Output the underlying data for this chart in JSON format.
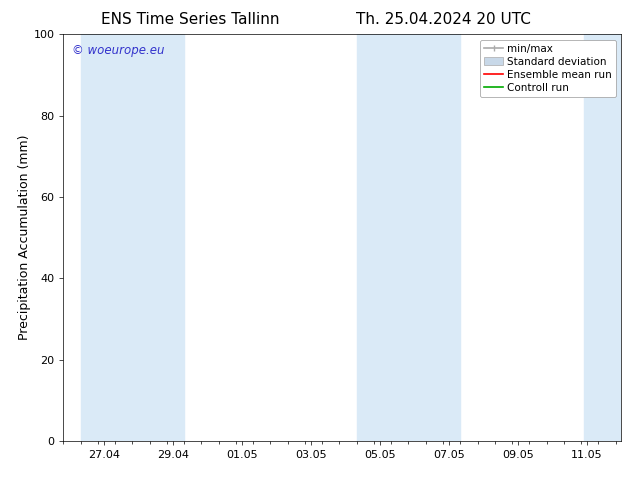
{
  "title_left": "ENS Time Series Tallinn",
  "title_right": "Th. 25.04.2024 20 UTC",
  "ylabel": "Precipitation Accumulation (mm)",
  "ylim": [
    0,
    100
  ],
  "yticks": [
    0,
    20,
    40,
    60,
    80,
    100
  ],
  "xtick_labels": [
    "27.04",
    "29.04",
    "01.05",
    "03.05",
    "05.05",
    "07.05",
    "09.05",
    "11.05"
  ],
  "xtick_positions": [
    1.167,
    3.167,
    5.167,
    7.167,
    9.167,
    11.167,
    13.167,
    15.167
  ],
  "xlim": [
    0,
    16.167
  ],
  "shaded_bands": [
    {
      "x_start": 0.5,
      "x_end": 3.5
    },
    {
      "x_start": 8.5,
      "x_end": 11.5
    },
    {
      "x_start": 15.1,
      "x_end": 16.2
    }
  ],
  "band_color": "#daeaf7",
  "watermark_text": "© woeurope.eu",
  "watermark_color": "#3333cc",
  "legend_labels": [
    "min/max",
    "Standard deviation",
    "Ensemble mean run",
    "Controll run"
  ],
  "legend_colors": [
    "#aaaaaa",
    "#c8d8e8",
    "#ff0000",
    "#00aa00"
  ],
  "background_color": "#ffffff",
  "title_fontsize": 11,
  "axis_label_fontsize": 9,
  "tick_fontsize": 8,
  "legend_fontsize": 7.5
}
